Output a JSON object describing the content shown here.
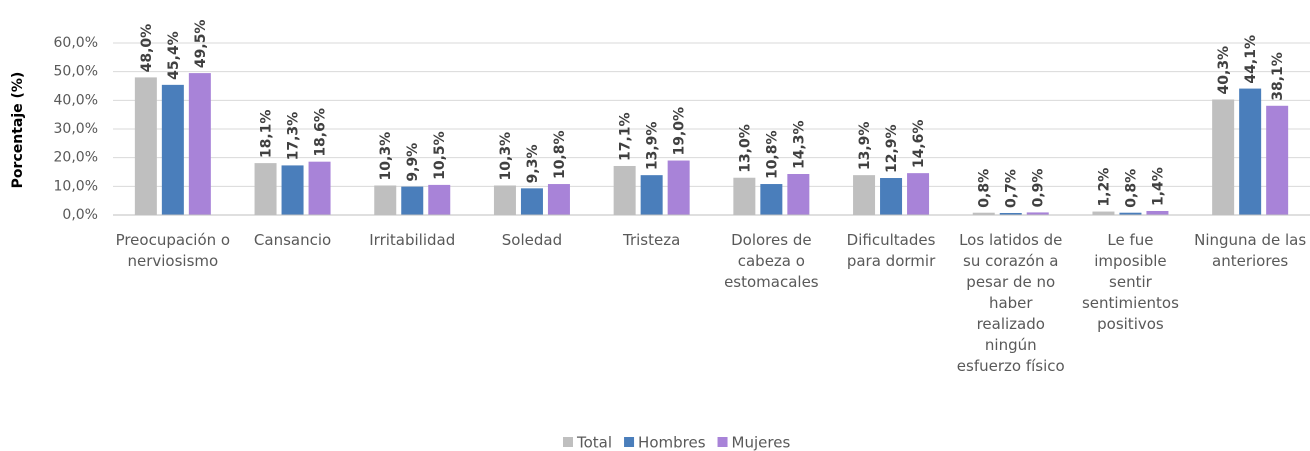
{
  "chart_data": {
    "type": "bar",
    "y_label": "Porcentaje (%)",
    "categories": [
      "Preocupación o nerviosismo",
      "Cansancio",
      "Irritabilidad",
      "Soledad",
      "Tristeza",
      "Dolores de cabeza o estomacales",
      "Dificultades para dormir",
      "Los latidos de su corazón a pesar de no haber realizado ningún esfuerzo físico",
      "Le fue imposible sentir sentimientos positivos",
      "Ninguna de las anteriores"
    ],
    "series": [
      {
        "name": "Total",
        "color": "#bfbfbf",
        "values": [
          48.0,
          18.1,
          10.3,
          10.3,
          17.1,
          13.0,
          13.9,
          0.8,
          1.2,
          40.3
        ],
        "value_labels": [
          "48,0%",
          "18,1%",
          "10,3%",
          "10,3%",
          "17,1%",
          "13,0%",
          "13,9%",
          "0,8%",
          "1,2%",
          "40,3%"
        ]
      },
      {
        "name": "Hombres",
        "color": "#4a7ebb",
        "values": [
          45.4,
          17.3,
          9.9,
          9.3,
          13.9,
          10.8,
          12.9,
          0.7,
          0.8,
          44.1
        ],
        "value_labels": [
          "45,4%",
          "17,3%",
          "9,9%",
          "9,3%",
          "13,9%",
          "10,8%",
          "12,9%",
          "0,7%",
          "0,8%",
          "44,1%"
        ]
      },
      {
        "name": "Mujeres",
        "color": "#a883d8",
        "values": [
          49.5,
          18.6,
          10.5,
          10.8,
          19.0,
          14.3,
          14.6,
          0.9,
          1.4,
          38.1
        ],
        "value_labels": [
          "49,5%",
          "18,6%",
          "10,5%",
          "10,8%",
          "19,0%",
          "14,3%",
          "14,6%",
          "0,9%",
          "1,4%",
          "38,1%"
        ]
      }
    ],
    "ylim": [
      0,
      60
    ],
    "yticks": [
      {
        "value": 0,
        "label": "0,0%"
      },
      {
        "value": 10,
        "label": "10,0%"
      },
      {
        "value": 20,
        "label": "20,0%"
      },
      {
        "value": 30,
        "label": "30,0%"
      },
      {
        "value": 40,
        "label": "40,0%"
      },
      {
        "value": 50,
        "label": "50,0%"
      },
      {
        "value": 60,
        "label": "60,0%"
      }
    ],
    "grid": true,
    "legend": "bottom"
  }
}
